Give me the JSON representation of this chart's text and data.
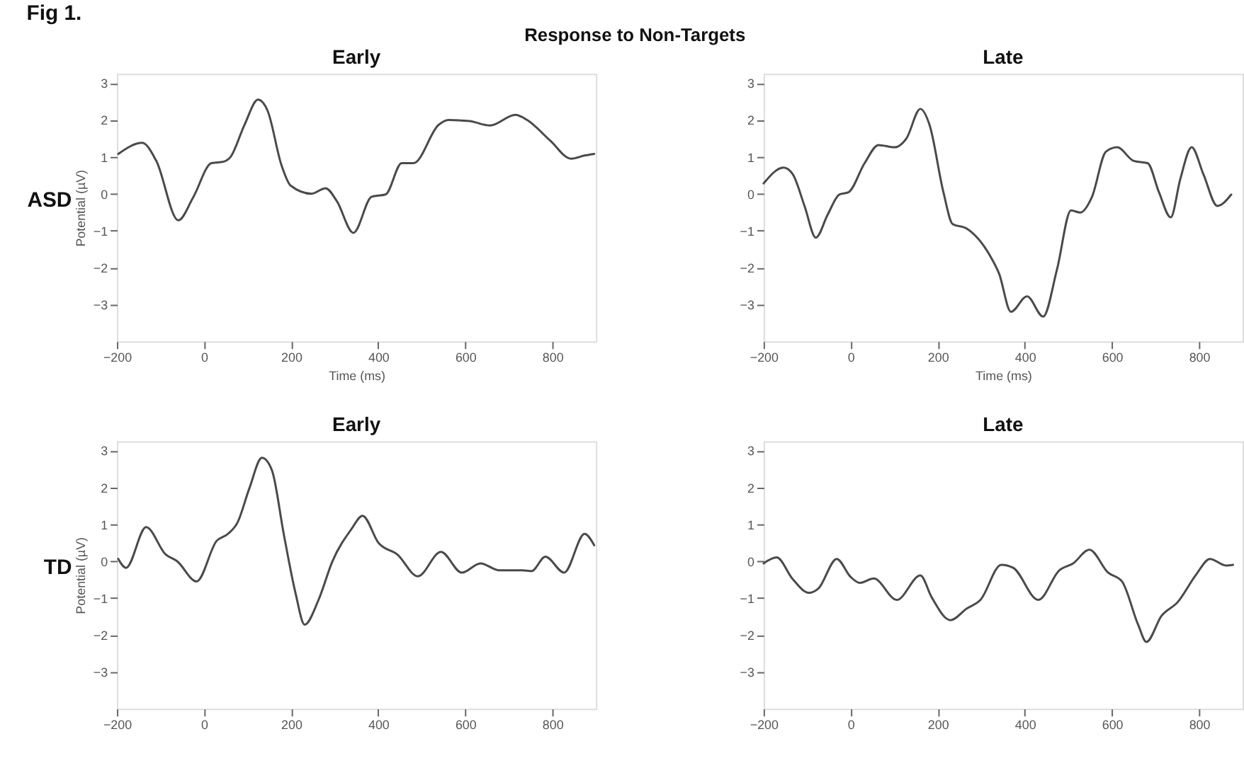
{
  "chart_data": [
    {
      "type": "line",
      "title": "Early",
      "xlabel": "Time (ms)",
      "ylabel": "Potential (µV)",
      "annotations": [
        "Fig 1.",
        "Response to Non-Targets",
        "ASD"
      ],
      "xlim": [
        -200,
        900
      ],
      "ylim": [
        -4,
        3.25
      ],
      "xticks": [
        -200,
        0,
        200,
        400,
        600,
        800
      ],
      "yticks": [
        -3,
        -2,
        -1,
        0,
        1,
        2,
        3
      ],
      "grid": false,
      "legend": false,
      "line_style": "solid",
      "series": [
        {
          "color": "#4a4a4a",
          "x": [
            -197,
            -142,
            -110,
            -59,
            -25,
            17,
            45,
            61,
            93,
            124,
            146,
            178,
            199,
            247,
            279,
            305,
            343,
            385,
            417,
            454,
            481,
            539,
            561,
            609,
            657,
            715,
            742,
            795,
            843,
            875,
            896
          ],
          "values": [
            1.08,
            1.38,
            0.9,
            -0.72,
            -0.1,
            0.83,
            0.87,
            1.0,
            1.87,
            2.55,
            2.25,
            0.77,
            0.22,
            0.0,
            0.15,
            -0.2,
            -1.06,
            -0.08,
            -0.02,
            0.83,
            0.83,
            1.87,
            2.0,
            1.97,
            1.85,
            2.14,
            2.0,
            1.44,
            0.95,
            1.04,
            1.08
          ]
        }
      ]
    },
    {
      "type": "line",
      "title": "Late",
      "xlabel": "Time (ms)",
      "xlim": [
        -200,
        900
      ],
      "ylim": [
        -4,
        3.25
      ],
      "xticks": [
        -200,
        0,
        200,
        400,
        600,
        800
      ],
      "yticks": [
        -3,
        -2,
        -1,
        0,
        1,
        2,
        3
      ],
      "grid": false,
      "legend": false,
      "line_style": "solid",
      "series": [
        {
          "color": "#4a4a4a",
          "x": [
            -200,
            -154,
            -133,
            -106,
            -80,
            -53,
            -26,
            -5,
            32,
            64,
            101,
            128,
            160,
            181,
            213,
            234,
            266,
            320,
            341,
            368,
            405,
            442,
            474,
            506,
            527,
            554,
            586,
            612,
            650,
            682,
            708,
            735,
            757,
            783,
            810,
            842,
            874
          ],
          "values": [
            0.28,
            0.71,
            0.53,
            -0.33,
            -1.19,
            -0.57,
            -0.02,
            0.04,
            0.83,
            1.32,
            1.26,
            1.5,
            2.3,
            1.87,
            0.04,
            -0.82,
            -0.94,
            -1.68,
            -2.17,
            -3.2,
            -2.78,
            -3.33,
            -2.04,
            -0.45,
            -0.51,
            -0.09,
            1.14,
            1.26,
            0.89,
            0.83,
            0.04,
            -0.64,
            0.4,
            1.26,
            0.53,
            -0.33,
            -0.02
          ]
        }
      ]
    },
    {
      "type": "line",
      "title": "Early",
      "ylabel": "Potential (µV)",
      "annotations": [
        "TD"
      ],
      "xlim": [
        -200,
        900
      ],
      "ylim": [
        -4,
        3.25
      ],
      "xticks": [
        -200,
        0,
        200,
        400,
        600,
        800
      ],
      "yticks": [
        -3,
        -2,
        -1,
        0,
        1,
        2,
        3
      ],
      "grid": false,
      "legend": false,
      "line_style": "solid",
      "series": [
        {
          "color": "#4a4a4a",
          "x": [
            -197,
            -179,
            -133,
            -88,
            -62,
            -17,
            29,
            55,
            77,
            104,
            133,
            156,
            183,
            210,
            231,
            263,
            295,
            338,
            364,
            401,
            444,
            491,
            544,
            592,
            635,
            678,
            731,
            752,
            784,
            827,
            874,
            896
          ],
          "values": [
            0.06,
            -0.18,
            0.92,
            0.18,
            0.0,
            -0.55,
            0.55,
            0.74,
            1.05,
            1.97,
            2.8,
            2.46,
            0.74,
            -0.86,
            -1.72,
            -1.05,
            0.0,
            0.86,
            1.23,
            0.49,
            0.18,
            -0.41,
            0.25,
            -0.31,
            -0.06,
            -0.25,
            -0.25,
            -0.27,
            0.12,
            -0.31,
            0.74,
            0.43
          ]
        }
      ]
    },
    {
      "type": "line",
      "title": "Late",
      "xlim": [
        -200,
        900
      ],
      "ylim": [
        -4,
        3.25
      ],
      "xticks": [
        -200,
        0,
        200,
        400,
        600,
        800
      ],
      "yticks": [
        -3,
        -2,
        -1,
        0,
        1,
        2,
        3
      ],
      "grid": false,
      "legend": false,
      "line_style": "solid",
      "series": [
        {
          "color": "#4a4a4a",
          "x": [
            -200,
            -170,
            -133,
            -96,
            -74,
            -32,
            0,
            21,
            53,
            106,
            160,
            186,
            229,
            266,
            298,
            346,
            373,
            431,
            479,
            511,
            548,
            591,
            623,
            660,
            679,
            714,
            751,
            793,
            825,
            862,
            878
          ],
          "values": [
            -0.06,
            0.1,
            -0.49,
            -0.86,
            -0.74,
            0.06,
            -0.43,
            -0.59,
            -0.47,
            -1.05,
            -0.39,
            -0.98,
            -1.6,
            -1.29,
            -1.05,
            -0.1,
            -0.18,
            -1.05,
            -0.25,
            -0.06,
            0.31,
            -0.31,
            -0.55,
            -1.72,
            -2.19,
            -1.48,
            -1.11,
            -0.37,
            0.06,
            -0.12,
            -0.1
          ]
        }
      ]
    }
  ]
}
